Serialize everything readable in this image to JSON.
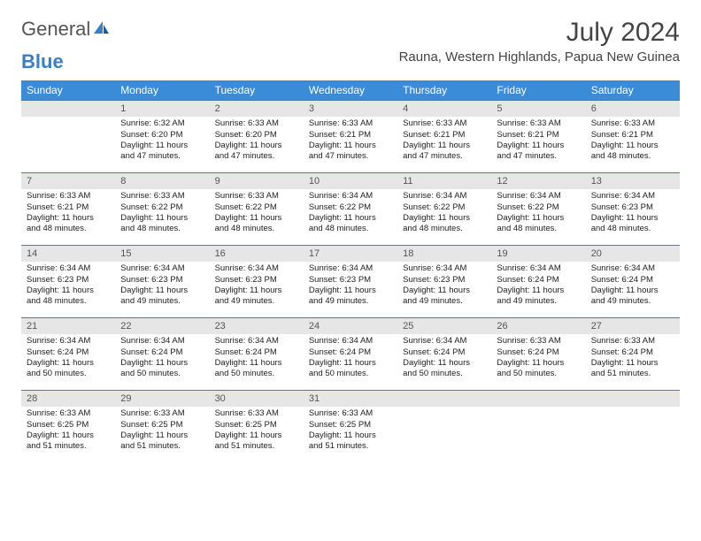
{
  "brand": {
    "part1": "General",
    "part2": "Blue"
  },
  "title": "July 2024",
  "location": "Rauna, Western Highlands, Papua New Guinea",
  "accent_color": "#3a8bd8",
  "border_color": "#3a7fc4",
  "daynum_bg": "#e6e6e6",
  "weekdays": [
    "Sunday",
    "Monday",
    "Tuesday",
    "Wednesday",
    "Thursday",
    "Friday",
    "Saturday"
  ],
  "weeks": [
    [
      null,
      {
        "n": "1",
        "sr": "Sunrise: 6:32 AM",
        "ss": "Sunset: 6:20 PM",
        "d1": "Daylight: 11 hours",
        "d2": "and 47 minutes."
      },
      {
        "n": "2",
        "sr": "Sunrise: 6:33 AM",
        "ss": "Sunset: 6:20 PM",
        "d1": "Daylight: 11 hours",
        "d2": "and 47 minutes."
      },
      {
        "n": "3",
        "sr": "Sunrise: 6:33 AM",
        "ss": "Sunset: 6:21 PM",
        "d1": "Daylight: 11 hours",
        "d2": "and 47 minutes."
      },
      {
        "n": "4",
        "sr": "Sunrise: 6:33 AM",
        "ss": "Sunset: 6:21 PM",
        "d1": "Daylight: 11 hours",
        "d2": "and 47 minutes."
      },
      {
        "n": "5",
        "sr": "Sunrise: 6:33 AM",
        "ss": "Sunset: 6:21 PM",
        "d1": "Daylight: 11 hours",
        "d2": "and 47 minutes."
      },
      {
        "n": "6",
        "sr": "Sunrise: 6:33 AM",
        "ss": "Sunset: 6:21 PM",
        "d1": "Daylight: 11 hours",
        "d2": "and 48 minutes."
      }
    ],
    [
      {
        "n": "7",
        "sr": "Sunrise: 6:33 AM",
        "ss": "Sunset: 6:21 PM",
        "d1": "Daylight: 11 hours",
        "d2": "and 48 minutes."
      },
      {
        "n": "8",
        "sr": "Sunrise: 6:33 AM",
        "ss": "Sunset: 6:22 PM",
        "d1": "Daylight: 11 hours",
        "d2": "and 48 minutes."
      },
      {
        "n": "9",
        "sr": "Sunrise: 6:33 AM",
        "ss": "Sunset: 6:22 PM",
        "d1": "Daylight: 11 hours",
        "d2": "and 48 minutes."
      },
      {
        "n": "10",
        "sr": "Sunrise: 6:34 AM",
        "ss": "Sunset: 6:22 PM",
        "d1": "Daylight: 11 hours",
        "d2": "and 48 minutes."
      },
      {
        "n": "11",
        "sr": "Sunrise: 6:34 AM",
        "ss": "Sunset: 6:22 PM",
        "d1": "Daylight: 11 hours",
        "d2": "and 48 minutes."
      },
      {
        "n": "12",
        "sr": "Sunrise: 6:34 AM",
        "ss": "Sunset: 6:22 PM",
        "d1": "Daylight: 11 hours",
        "d2": "and 48 minutes."
      },
      {
        "n": "13",
        "sr": "Sunrise: 6:34 AM",
        "ss": "Sunset: 6:23 PM",
        "d1": "Daylight: 11 hours",
        "d2": "and 48 minutes."
      }
    ],
    [
      {
        "n": "14",
        "sr": "Sunrise: 6:34 AM",
        "ss": "Sunset: 6:23 PM",
        "d1": "Daylight: 11 hours",
        "d2": "and 48 minutes."
      },
      {
        "n": "15",
        "sr": "Sunrise: 6:34 AM",
        "ss": "Sunset: 6:23 PM",
        "d1": "Daylight: 11 hours",
        "d2": "and 49 minutes."
      },
      {
        "n": "16",
        "sr": "Sunrise: 6:34 AM",
        "ss": "Sunset: 6:23 PM",
        "d1": "Daylight: 11 hours",
        "d2": "and 49 minutes."
      },
      {
        "n": "17",
        "sr": "Sunrise: 6:34 AM",
        "ss": "Sunset: 6:23 PM",
        "d1": "Daylight: 11 hours",
        "d2": "and 49 minutes."
      },
      {
        "n": "18",
        "sr": "Sunrise: 6:34 AM",
        "ss": "Sunset: 6:23 PM",
        "d1": "Daylight: 11 hours",
        "d2": "and 49 minutes."
      },
      {
        "n": "19",
        "sr": "Sunrise: 6:34 AM",
        "ss": "Sunset: 6:24 PM",
        "d1": "Daylight: 11 hours",
        "d2": "and 49 minutes."
      },
      {
        "n": "20",
        "sr": "Sunrise: 6:34 AM",
        "ss": "Sunset: 6:24 PM",
        "d1": "Daylight: 11 hours",
        "d2": "and 49 minutes."
      }
    ],
    [
      {
        "n": "21",
        "sr": "Sunrise: 6:34 AM",
        "ss": "Sunset: 6:24 PM",
        "d1": "Daylight: 11 hours",
        "d2": "and 50 minutes."
      },
      {
        "n": "22",
        "sr": "Sunrise: 6:34 AM",
        "ss": "Sunset: 6:24 PM",
        "d1": "Daylight: 11 hours",
        "d2": "and 50 minutes."
      },
      {
        "n": "23",
        "sr": "Sunrise: 6:34 AM",
        "ss": "Sunset: 6:24 PM",
        "d1": "Daylight: 11 hours",
        "d2": "and 50 minutes."
      },
      {
        "n": "24",
        "sr": "Sunrise: 6:34 AM",
        "ss": "Sunset: 6:24 PM",
        "d1": "Daylight: 11 hours",
        "d2": "and 50 minutes."
      },
      {
        "n": "25",
        "sr": "Sunrise: 6:34 AM",
        "ss": "Sunset: 6:24 PM",
        "d1": "Daylight: 11 hours",
        "d2": "and 50 minutes."
      },
      {
        "n": "26",
        "sr": "Sunrise: 6:33 AM",
        "ss": "Sunset: 6:24 PM",
        "d1": "Daylight: 11 hours",
        "d2": "and 50 minutes."
      },
      {
        "n": "27",
        "sr": "Sunrise: 6:33 AM",
        "ss": "Sunset: 6:24 PM",
        "d1": "Daylight: 11 hours",
        "d2": "and 51 minutes."
      }
    ],
    [
      {
        "n": "28",
        "sr": "Sunrise: 6:33 AM",
        "ss": "Sunset: 6:25 PM",
        "d1": "Daylight: 11 hours",
        "d2": "and 51 minutes."
      },
      {
        "n": "29",
        "sr": "Sunrise: 6:33 AM",
        "ss": "Sunset: 6:25 PM",
        "d1": "Daylight: 11 hours",
        "d2": "and 51 minutes."
      },
      {
        "n": "30",
        "sr": "Sunrise: 6:33 AM",
        "ss": "Sunset: 6:25 PM",
        "d1": "Daylight: 11 hours",
        "d2": "and 51 minutes."
      },
      {
        "n": "31",
        "sr": "Sunrise: 6:33 AM",
        "ss": "Sunset: 6:25 PM",
        "d1": "Daylight: 11 hours",
        "d2": "and 51 minutes."
      },
      null,
      null,
      null
    ]
  ]
}
